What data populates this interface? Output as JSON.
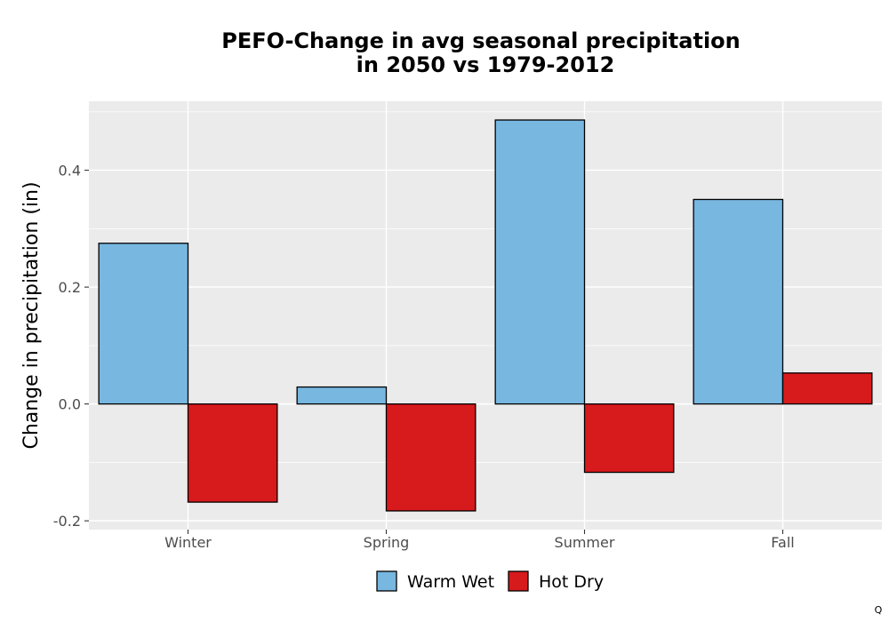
{
  "chart_data": {
    "type": "bar",
    "title_line1": "PEFO-Change in avg seasonal precipitation",
    "title_line2": "in 2050 vs 1979-2012",
    "xlabel": "",
    "ylabel": "Change in precipitation (in)",
    "categories": [
      "Winter",
      "Spring",
      "Summer",
      "Fall"
    ],
    "series": [
      {
        "name": "Warm Wet",
        "color": "#77b7e0",
        "values": [
          0.275,
          0.029,
          0.486,
          0.35
        ]
      },
      {
        "name": "Hot Dry",
        "color": "#d71a1c",
        "values": [
          -0.168,
          -0.183,
          -0.117,
          0.053
        ]
      }
    ],
    "ylim": [
      -0.215,
      0.518
    ],
    "yticks": [
      -0.2,
      0.0,
      0.2,
      0.4
    ],
    "ytick_labels": [
      "-0.2",
      "0.0",
      "0.2",
      "0.4"
    ],
    "grid": true,
    "legend_position": "bottom",
    "panel_background": "#ebebeb",
    "corner_text": "Q"
  }
}
